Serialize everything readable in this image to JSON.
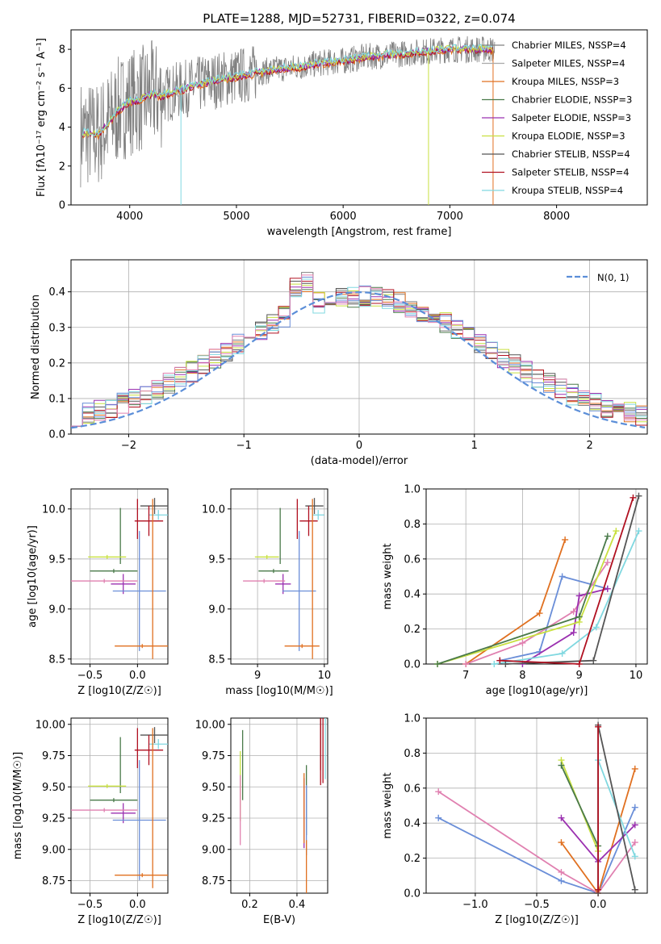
{
  "title": "PLATE=1288, MJD=52731, FIBERID=0322, z=0.074",
  "colors": {
    "chabrier_miles": "#808080",
    "salpeter_miles": "#a9a9a9",
    "kroupa_miles": "#e07020",
    "chabrier_elodie": "#4a7a4a",
    "salpeter_elodie": "#9b30b0",
    "kroupa_elodie": "#c8e040",
    "chabrier_stelib": "#555555",
    "salpeter_stelib": "#b01020",
    "kroupa_stelib": "#80d8e0",
    "normal_dashed": "#5b8ed8",
    "extra_blue": "#6a8ed8",
    "extra_pink": "#e080b0"
  },
  "chart_data": [
    {
      "type": "line",
      "xlabel": "wavelength [Angstrom, rest frame]",
      "ylabel": "Flux [fλ10⁻¹⁷ erg cm⁻² s⁻¹ A⁻¹]",
      "xlim": [
        3450,
        8850
      ],
      "ylim": [
        0,
        9
      ],
      "xticks": [
        "4000",
        "5000",
        "6000",
        "7000",
        "8000"
      ],
      "yticks": [
        "0",
        "2",
        "4",
        "6",
        "8"
      ],
      "legend": [
        "Chabrier MILES, NSSP=4",
        "Salpeter MILES, NSSP=4",
        "Kroupa MILES, NSSP=3",
        "Chabrier ELODIE, NSSP=3",
        "Salpeter ELODIE, NSSP=3",
        "Kroupa ELODIE, NSSP=3",
        "Chabrier STELIB, NSSP=4",
        "Salpeter STELIB, NSSP=4",
        "Kroupa STELIB, NSSP=4"
      ],
      "legend_placement": "right",
      "continuum": {
        "x": [
          3550,
          3700,
          3800,
          3900,
          4000,
          4100,
          4200,
          4300,
          4400,
          4600,
          4800,
          5000,
          5200,
          5400,
          5600,
          5800,
          6000,
          6200,
          6400,
          6600,
          6800,
          7000,
          7200,
          7400
        ],
        "y": [
          3.7,
          3.6,
          4.2,
          4.9,
          5.3,
          5.4,
          5.7,
          5.6,
          5.8,
          6.1,
          6.4,
          6.6,
          6.8,
          7.0,
          7.1,
          7.3,
          7.4,
          7.6,
          7.7,
          7.8,
          7.9,
          8.0,
          8.0,
          8.0
        ]
      }
    },
    {
      "type": "line",
      "xlabel": "(data-model)/error",
      "ylabel": "Normed distribution",
      "xlim": [
        -2.5,
        2.5
      ],
      "ylim": [
        0,
        0.49
      ],
      "xticks": [
        "−2",
        "−1",
        "0",
        "1",
        "2"
      ],
      "yticks": [
        "0.0",
        "0.1",
        "0.2",
        "0.3",
        "0.4"
      ],
      "legend": [
        "N(0, 1)"
      ],
      "legend_placement": "top-right"
    },
    {
      "type": "scatter",
      "xlabel": "Z [log10(Z/Z☉)]",
      "ylabel": "age  [log10(age/yr)]",
      "xlim": [
        -0.7,
        0.32
      ],
      "ylim": [
        8.45,
        10.2
      ],
      "xticks": [
        "−0.5",
        "0.0"
      ],
      "yticks": [
        "8.5",
        "9.0",
        "9.5",
        "10.0"
      ],
      "errorbars": [
        {
          "x": 0.18,
          "y": 10.03,
          "xerr": 0.15,
          "yerr": 0.08,
          "color": "#555555"
        },
        {
          "x": 0.22,
          "y": 9.94,
          "xerr": 0.1,
          "yerr": 0.05,
          "color": "#80d8e0"
        },
        {
          "x": 0.12,
          "y": 9.88,
          "xerr": 0.15,
          "yerr": 0.15,
          "color": "#b01020"
        },
        {
          "x": 0.0,
          "y": 9.9,
          "xerr": 0.0,
          "yerr": 0.2,
          "color": "#b01020"
        },
        {
          "x": -0.18,
          "y": 9.73,
          "xerr": 0.0,
          "yerr": 0.28,
          "color": "#4a7a4a"
        },
        {
          "x": -0.15,
          "y": 9.25,
          "xerr": 0.13,
          "yerr": 0.1,
          "color": "#9b30b0"
        },
        {
          "x": -0.32,
          "y": 9.52,
          "xerr": 0.2,
          "yerr": 0.02,
          "color": "#c8e040"
        },
        {
          "x": -0.25,
          "y": 9.38,
          "xerr": 0.25,
          "yerr": 0.02,
          "color": "#4a7a4a"
        },
        {
          "x": -0.35,
          "y": 9.28,
          "xerr": 0.35,
          "yerr": 0.02,
          "color": "#e080b0"
        },
        {
          "x": 0.02,
          "y": 9.18,
          "xerr": 0.28,
          "yerr": 0.6,
          "color": "#6a8ed8"
        },
        {
          "x": 0.05,
          "y": 8.63,
          "xerr": 0.29,
          "yerr": 0.02,
          "color": "#e07020"
        },
        {
          "x": 0.16,
          "y": 9.3,
          "xerr": 0.0,
          "yerr": 0.8,
          "color": "#e07020"
        }
      ]
    },
    {
      "type": "scatter",
      "xlabel": "mass [log10(M/M☉)]",
      "ylabel": "",
      "xlim": [
        8.6,
        10.05
      ],
      "ylim": [
        8.45,
        10.2
      ],
      "xticks": [
        "9",
        "10"
      ],
      "yticks": [
        "8.5",
        "9.0",
        "9.5",
        "10.0"
      ]
    },
    {
      "type": "line",
      "xlabel": "age  [log10(age/yr)]",
      "ylabel": "mass weight",
      "xlim": [
        6.3,
        10.2
      ],
      "ylim": [
        0,
        1.0
      ],
      "xticks": [
        "7",
        "8",
        "9",
        "10"
      ],
      "yticks": [
        "0.0",
        "0.2",
        "0.4",
        "0.6",
        "0.8",
        "1.0"
      ],
      "series": [
        {
          "color": "#e07020",
          "x": [
            7.0,
            8.3,
            8.75
          ],
          "y": [
            0.0,
            0.29,
            0.71
          ]
        },
        {
          "color": "#6a8ed8",
          "x": [
            7.6,
            8.3,
            8.7,
            9.5
          ],
          "y": [
            0.02,
            0.07,
            0.5,
            0.43
          ]
        },
        {
          "color": "#e080b0",
          "x": [
            7.0,
            8.0,
            8.9,
            9.5
          ],
          "y": [
            0.0,
            0.12,
            0.3,
            0.58
          ]
        },
        {
          "color": "#9b30b0",
          "x": [
            8.0,
            8.9,
            9.0,
            9.5
          ],
          "y": [
            0.0,
            0.18,
            0.39,
            0.43
          ]
        },
        {
          "color": "#c8e040",
          "x": [
            6.5,
            9.0,
            9.65
          ],
          "y": [
            0.0,
            0.24,
            0.76
          ]
        },
        {
          "color": "#4a7a4a",
          "x": [
            6.5,
            9.0,
            9.5
          ],
          "y": [
            0.0,
            0.27,
            0.73
          ]
        },
        {
          "color": "#80d8e0",
          "x": [
            7.5,
            8.7,
            9.3,
            10.05
          ],
          "y": [
            0.0,
            0.06,
            0.21,
            0.76
          ]
        },
        {
          "color": "#555555",
          "x": [
            7.7,
            9.25,
            10.05
          ],
          "y": [
            0.0,
            0.02,
            0.96
          ]
        },
        {
          "color": "#b01020",
          "x": [
            7.6,
            9.0,
            9.95
          ],
          "y": [
            0.02,
            0.0,
            0.95
          ]
        }
      ]
    },
    {
      "type": "scatter",
      "xlabel": "Z [log10(Z/Z☉)]",
      "ylabel": "mass [log10(M/M☉)]",
      "xlim": [
        -0.7,
        0.32
      ],
      "ylim": [
        8.65,
        10.05
      ],
      "xticks": [
        "−0.5",
        "0.0"
      ],
      "yticks": [
        "8.75",
        "9.00",
        "9.25",
        "9.50",
        "9.75",
        "10.00"
      ]
    },
    {
      "type": "scatter",
      "xlabel": "E(B-V)",
      "ylabel": "",
      "xlim": [
        0.12,
        0.53
      ],
      "ylim": [
        8.65,
        10.05
      ],
      "xticks": [
        "0.2",
        "0.4"
      ],
      "yticks": [
        "8.75",
        "9.00",
        "9.25",
        "9.50",
        "9.75",
        "10.00"
      ]
    },
    {
      "type": "line",
      "xlabel": "Z [log10(Z/Z☉)]",
      "ylabel": "mass weight",
      "xlim": [
        -1.4,
        0.4
      ],
      "ylim": [
        0,
        1.0
      ],
      "xticks": [
        "−1.0",
        "−0.5",
        "0.0"
      ],
      "yticks": [
        "0.0",
        "0.2",
        "0.4",
        "0.6",
        "0.8",
        "1.0"
      ],
      "series": [
        {
          "color": "#6a8ed8",
          "x": [
            -1.3,
            -0.3,
            0.0,
            0.3
          ],
          "y": [
            0.43,
            0.07,
            0.0,
            0.49
          ]
        },
        {
          "color": "#e080b0",
          "x": [
            -1.3,
            -0.3,
            0.0,
            0.3
          ],
          "y": [
            0.58,
            0.12,
            0.0,
            0.29
          ]
        },
        {
          "color": "#e07020",
          "x": [
            -0.3,
            0.0,
            0.3
          ],
          "y": [
            0.29,
            0.0,
            0.71
          ]
        },
        {
          "color": "#9b30b0",
          "x": [
            -0.3,
            0.0,
            0.3
          ],
          "y": [
            0.43,
            0.18,
            0.39
          ]
        },
        {
          "color": "#c8e040",
          "x": [
            -0.3,
            0.0
          ],
          "y": [
            0.76,
            0.24
          ]
        },
        {
          "color": "#4a7a4a",
          "x": [
            -0.3,
            0.0
          ],
          "y": [
            0.73,
            0.27
          ]
        },
        {
          "color": "#80d8e0",
          "x": [
            0.0,
            0.0,
            0.3
          ],
          "y": [
            0.02,
            0.76,
            0.21
          ]
        },
        {
          "color": "#555555",
          "x": [
            0.0,
            0.0,
            0.3
          ],
          "y": [
            0.0,
            0.96,
            0.02
          ]
        },
        {
          "color": "#b01020",
          "x": [
            0.0,
            0.0
          ],
          "y": [
            0.02,
            0.95
          ]
        }
      ]
    }
  ]
}
